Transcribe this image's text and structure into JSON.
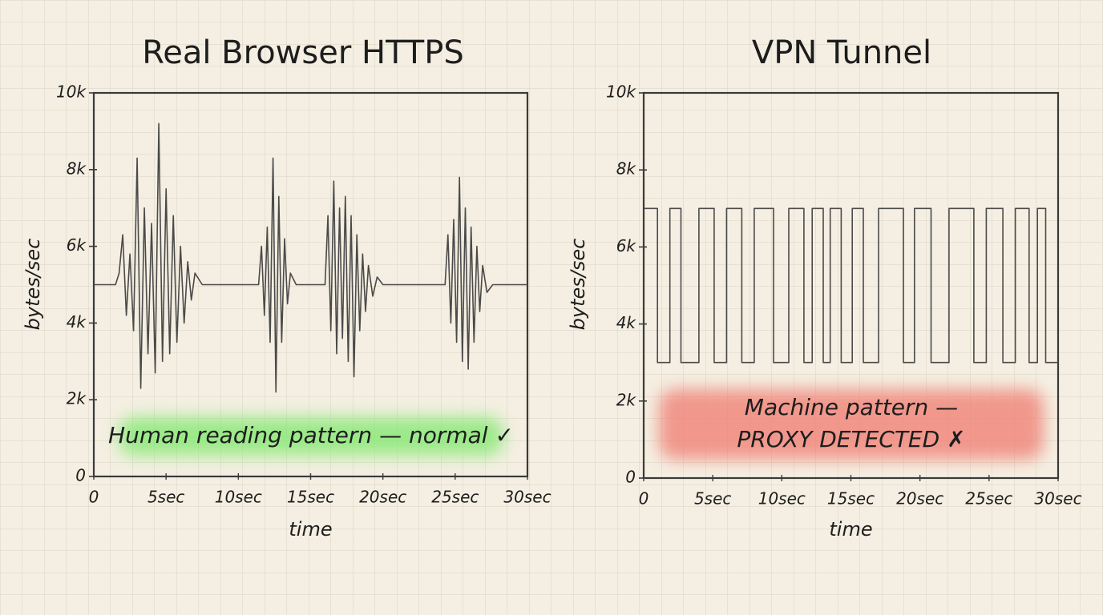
{
  "chart_data": [
    {
      "type": "line",
      "title": "Real Browser HTTPS",
      "x_label": "time",
      "y_label": "bytes/sec",
      "annotation": [
        "Human reading pattern — normal ✓"
      ],
      "color": "#4a4a4a",
      "x": [
        0,
        1.5,
        1.75,
        2,
        2.25,
        2.5,
        2.75,
        3,
        3.25,
        3.5,
        3.75,
        4,
        4.25,
        4.5,
        4.75,
        5,
        5.25,
        5.5,
        5.75,
        6,
        6.25,
        6.5,
        6.75,
        7,
        7.5,
        11.4,
        11.6,
        11.8,
        12,
        12.2,
        12.4,
        12.6,
        12.8,
        13,
        13.2,
        13.4,
        13.6,
        14,
        16,
        16.2,
        16.4,
        16.6,
        16.8,
        17,
        17.2,
        17.4,
        17.6,
        17.8,
        18,
        18.2,
        18.4,
        18.6,
        18.8,
        19,
        19.3,
        19.6,
        20,
        24.3,
        24.5,
        24.7,
        24.9,
        25.1,
        25.3,
        25.5,
        25.7,
        25.9,
        26.1,
        26.3,
        26.5,
        26.7,
        26.9,
        27.2,
        27.6,
        30
      ],
      "values": [
        5000,
        5000,
        5300,
        6300,
        4200,
        5800,
        3800,
        8300,
        2300,
        7000,
        3200,
        6600,
        2700,
        9200,
        3000,
        7500,
        3200,
        6800,
        3500,
        6000,
        4000,
        5600,
        4600,
        5300,
        5000,
        5000,
        6000,
        4200,
        6500,
        3500,
        8300,
        2200,
        7300,
        3500,
        6200,
        4500,
        5300,
        5000,
        5000,
        6800,
        3800,
        7700,
        3200,
        7000,
        3600,
        7300,
        3000,
        6800,
        2600,
        6300,
        3800,
        5800,
        4300,
        5500,
        4700,
        5200,
        5000,
        5000,
        6300,
        4000,
        6700,
        3500,
        7800,
        3000,
        7000,
        2800,
        6500,
        3500,
        6000,
        4300,
        5500,
        4800,
        5000,
        5000
      ],
      "xlim": [
        0,
        30
      ],
      "ylim": [
        0,
        10000
      ],
      "xticks": [
        0,
        {
          "value": 5,
          "label": "5sec"
        },
        {
          "value": 10,
          "label": "10sec"
        },
        {
          "value": 15,
          "label": "15sec"
        },
        {
          "value": 20,
          "label": "20sec"
        },
        {
          "value": 25,
          "label": "25sec"
        },
        {
          "value": 30,
          "label": "30sec"
        }
      ],
      "yticks": [
        0,
        {
          "value": 2000,
          "label": "2k"
        },
        {
          "value": 4000,
          "label": "4k"
        },
        {
          "value": 6000,
          "label": "6k"
        },
        {
          "value": 8000,
          "label": "8k"
        },
        {
          "value": 10000,
          "label": "10k"
        }
      ]
    },
    {
      "type": "line",
      "title": "VPN Tunnel",
      "x_label": "time",
      "y_label": "bytes/sec",
      "annotation": [
        "Machine pattern —",
        "PROXY DETECTED ✗"
      ],
      "color": "#4a4a4a",
      "x": [
        0,
        1,
        1,
        1.9,
        1.9,
        2.7,
        2.7,
        4,
        4,
        5.1,
        5.1,
        6,
        6,
        7.1,
        7.1,
        8,
        8,
        9.4,
        9.4,
        10.5,
        10.5,
        11.6,
        11.6,
        12.2,
        12.2,
        13,
        13,
        13.5,
        13.5,
        14.3,
        14.3,
        15.1,
        15.1,
        15.9,
        15.9,
        17,
        17,
        18.8,
        18.8,
        19.6,
        19.6,
        20.8,
        20.8,
        22.1,
        22.1,
        23.9,
        23.9,
        24.8,
        24.8,
        26,
        26,
        26.9,
        26.9,
        27.9,
        27.9,
        28.5,
        28.5,
        29.1,
        29.1,
        30
      ],
      "values": [
        7000,
        7000,
        3000,
        3000,
        7000,
        7000,
        3000,
        3000,
        7000,
        7000,
        3000,
        3000,
        7000,
        7000,
        3000,
        3000,
        7000,
        7000,
        3000,
        3000,
        7000,
        7000,
        3000,
        3000,
        7000,
        7000,
        3000,
        3000,
        7000,
        7000,
        3000,
        3000,
        7000,
        7000,
        3000,
        3000,
        7000,
        7000,
        3000,
        3000,
        7000,
        7000,
        3000,
        3000,
        7000,
        7000,
        3000,
        3000,
        7000,
        7000,
        3000,
        3000,
        7000,
        7000,
        3000,
        3000,
        7000,
        7000,
        3000,
        3000
      ],
      "xlim": [
        0,
        30
      ],
      "ylim": [
        0,
        10000
      ],
      "xticks": [
        0,
        {
          "value": 5,
          "label": "5sec"
        },
        {
          "value": 10,
          "label": "10sec"
        },
        {
          "value": 15,
          "label": "15sec"
        },
        {
          "value": 20,
          "label": "20sec"
        },
        {
          "value": 25,
          "label": "25sec"
        },
        {
          "value": 30,
          "label": "30sec"
        }
      ],
      "yticks": [
        0,
        {
          "value": 2000,
          "label": "2k"
        },
        {
          "value": 4000,
          "label": "4k"
        },
        {
          "value": 6000,
          "label": "6k"
        },
        {
          "value": 8000,
          "label": "8k"
        },
        {
          "value": 10000,
          "label": "10k"
        }
      ]
    }
  ]
}
